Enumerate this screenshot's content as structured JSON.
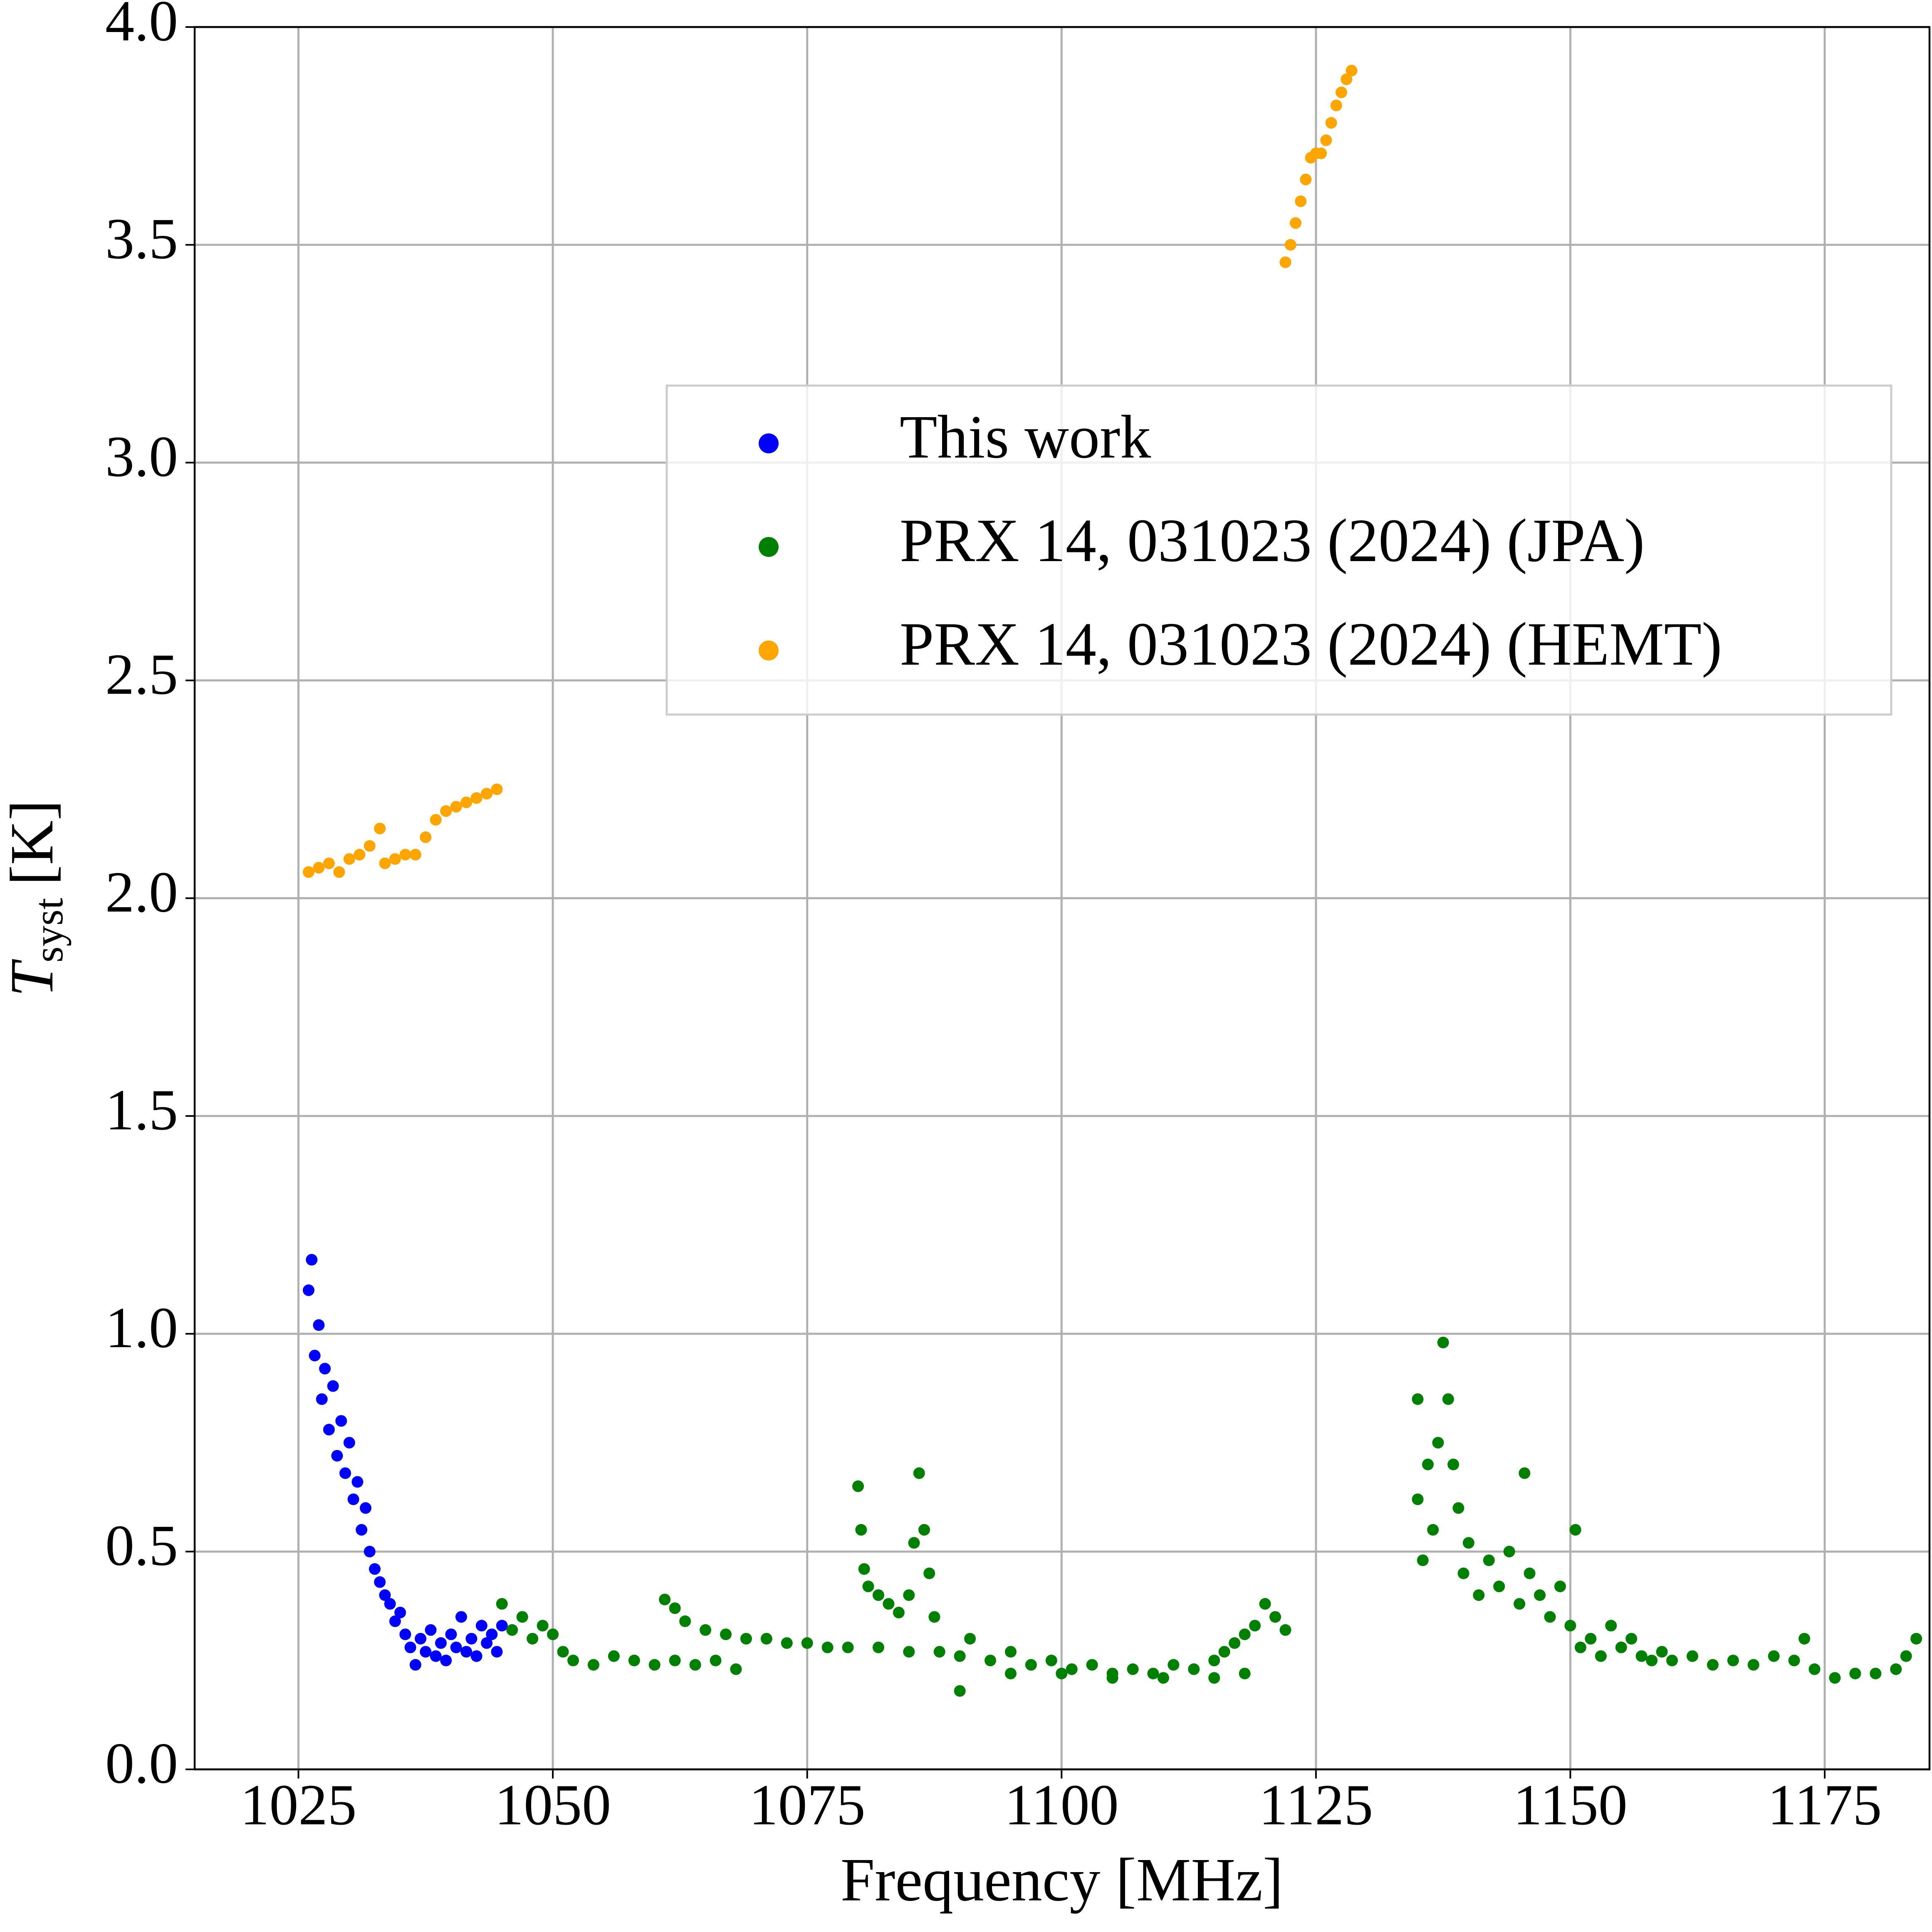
{
  "chart_data": {
    "type": "scatter",
    "xlabel": "Frequency [MHz]",
    "ylabel": {
      "symbol": "T",
      "subscript": "syst",
      "unit": "[K]"
    },
    "xlim": [
      1014.8,
      1185.3
    ],
    "ylim": [
      0,
      4.0
    ],
    "xticks": [
      1025,
      1050,
      1075,
      1100,
      1125,
      1150,
      1175
    ],
    "yticks": [
      {
        "value": 0,
        "label": "0.0"
      },
      {
        "value": 0.5,
        "label": "0.5"
      },
      {
        "value": 1,
        "label": "1.0"
      },
      {
        "value": 1.5,
        "label": "1.5"
      },
      {
        "value": 2,
        "label": "2.0"
      },
      {
        "value": 2.5,
        "label": "2.5"
      },
      {
        "value": 3,
        "label": "3.0"
      },
      {
        "value": 3.5,
        "label": "3.5"
      },
      {
        "value": 4,
        "label": "4.0"
      }
    ],
    "grid": true,
    "legend": "upper right",
    "series": [
      {
        "name": "This work",
        "color": "#0000ff",
        "x": [
          1026,
          1026.3,
          1026.6,
          1027,
          1027.3,
          1027.6,
          1028,
          1028.4,
          1028.8,
          1029.2,
          1029.6,
          1030,
          1030.4,
          1030.8,
          1031.2,
          1031.6,
          1032,
          1032.5,
          1033,
          1033.5,
          1034,
          1034.5,
          1035,
          1035.5,
          1036,
          1036.5,
          1037,
          1037.5,
          1038,
          1038.5,
          1039,
          1039.5,
          1040,
          1040.5,
          1041,
          1041.5,
          1042,
          1042.5,
          1043,
          1043.5,
          1044,
          1044.5,
          1045
        ],
        "values": [
          1.1,
          1.17,
          0.95,
          1.02,
          0.85,
          0.92,
          0.78,
          0.88,
          0.72,
          0.8,
          0.68,
          0.75,
          0.62,
          0.66,
          0.55,
          0.6,
          0.5,
          0.46,
          0.43,
          0.4,
          0.38,
          0.34,
          0.36,
          0.31,
          0.28,
          0.24,
          0.3,
          0.27,
          0.32,
          0.26,
          0.29,
          0.25,
          0.31,
          0.28,
          0.35,
          0.27,
          0.3,
          0.26,
          0.33,
          0.29,
          0.31,
          0.27,
          0.33
        ]
      },
      {
        "name": "PRX 14, 031023 (2024) (JPA)",
        "color": "#008000",
        "x": [
          1045,
          1046,
          1047,
          1048,
          1049,
          1050,
          1051,
          1052,
          1054,
          1056,
          1058,
          1060,
          1062,
          1064,
          1066,
          1068,
          1061,
          1062,
          1063,
          1065,
          1067,
          1069,
          1071,
          1073,
          1075,
          1077,
          1079,
          1080,
          1080.3,
          1080.6,
          1081,
          1082,
          1083,
          1084,
          1085,
          1085.5,
          1086,
          1086.5,
          1087,
          1087.5,
          1082,
          1085,
          1088,
          1090,
          1090,
          1091,
          1093,
          1095,
          1097,
          1099,
          1101,
          1103,
          1105,
          1107,
          1109,
          1111,
          1113,
          1115,
          1116,
          1117,
          1118,
          1119,
          1120,
          1121,
          1122,
          1095,
          1100,
          1105,
          1110,
          1115,
          1118,
          1135,
          1135,
          1135.5,
          1136,
          1136.5,
          1137,
          1137.5,
          1138,
          1138.5,
          1139,
          1139.5,
          1140,
          1141,
          1142,
          1143,
          1144,
          1145,
          1145.5,
          1146,
          1147,
          1148,
          1149,
          1150,
          1150.5,
          1151,
          1152,
          1153,
          1154,
          1155,
          1156,
          1157,
          1158,
          1159,
          1160,
          1162,
          1164,
          1166,
          1168,
          1170,
          1172,
          1173,
          1174,
          1176,
          1178,
          1180,
          1182,
          1183,
          1184
        ],
        "values": [
          0.38,
          0.32,
          0.35,
          0.3,
          0.33,
          0.31,
          0.27,
          0.25,
          0.24,
          0.26,
          0.25,
          0.24,
          0.25,
          0.24,
          0.25,
          0.23,
          0.39,
          0.37,
          0.34,
          0.32,
          0.31,
          0.3,
          0.3,
          0.29,
          0.29,
          0.28,
          0.28,
          0.65,
          0.55,
          0.46,
          0.42,
          0.4,
          0.38,
          0.36,
          0.4,
          0.52,
          0.68,
          0.55,
          0.45,
          0.35,
          0.28,
          0.27,
          0.27,
          0.26,
          0.18,
          0.3,
          0.25,
          0.27,
          0.24,
          0.25,
          0.23,
          0.24,
          0.22,
          0.23,
          0.22,
          0.24,
          0.23,
          0.25,
          0.27,
          0.29,
          0.31,
          0.33,
          0.38,
          0.35,
          0.32,
          0.22,
          0.22,
          0.21,
          0.21,
          0.21,
          0.22,
          0.62,
          0.85,
          0.48,
          0.7,
          0.55,
          0.75,
          0.98,
          0.85,
          0.7,
          0.6,
          0.45,
          0.52,
          0.4,
          0.48,
          0.42,
          0.5,
          0.38,
          0.68,
          0.45,
          0.4,
          0.35,
          0.42,
          0.33,
          0.55,
          0.28,
          0.3,
          0.26,
          0.33,
          0.28,
          0.3,
          0.26,
          0.25,
          0.27,
          0.25,
          0.26,
          0.24,
          0.25,
          0.24,
          0.26,
          0.25,
          0.3,
          0.23,
          0.21,
          0.22,
          0.22,
          0.23,
          0.26,
          0.3
        ]
      },
      {
        "name": "PRX 14, 031023 (2024) (HEMT)",
        "color": "#ffa500",
        "x": [
          1026,
          1027,
          1028,
          1029,
          1030,
          1031,
          1032,
          1033,
          1033.5,
          1034.5,
          1035.5,
          1036.5,
          1037.5,
          1038.5,
          1039.5,
          1040.5,
          1041.5,
          1042.5,
          1043.5,
          1044.5,
          1122,
          1122.5,
          1123,
          1123.5,
          1124,
          1124.5,
          1125,
          1125.5,
          1126,
          1126.5,
          1127,
          1127.5,
          1128,
          1128.5
        ],
        "values": [
          2.06,
          2.07,
          2.08,
          2.06,
          2.09,
          2.1,
          2.12,
          2.16,
          2.08,
          2.09,
          2.1,
          2.1,
          2.14,
          2.18,
          2.2,
          2.21,
          2.22,
          2.23,
          2.24,
          2.25,
          3.46,
          3.5,
          3.55,
          3.6,
          3.65,
          3.7,
          3.71,
          3.71,
          3.74,
          3.78,
          3.82,
          3.85,
          3.88,
          3.9
        ]
      }
    ]
  }
}
